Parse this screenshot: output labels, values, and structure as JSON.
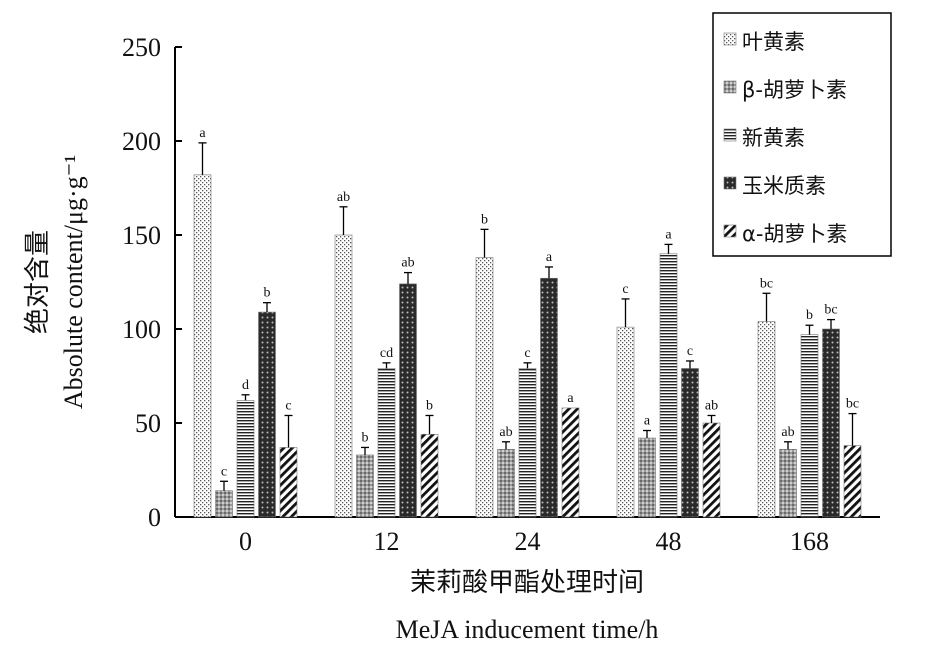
{
  "chart_data": {
    "type": "bar",
    "xlabel_cn": "茉莉酸甲酯处理时间",
    "xlabel_en": "MeJA inducement time/h",
    "ylabel_cn": "绝对含量",
    "ylabel_en": "Absolute content/μg·g⁻¹",
    "ylim": [
      0,
      250
    ],
    "yticks": [
      0,
      50,
      100,
      150,
      200,
      250
    ],
    "categories": [
      "0",
      "12",
      "24",
      "48",
      "168"
    ],
    "series": [
      {
        "name": "叶黄素",
        "pattern": "dots",
        "values": [
          182,
          150,
          138,
          101,
          104
        ],
        "errors": [
          17,
          15,
          15,
          15,
          15
        ],
        "labels": [
          "a",
          "ab",
          "b",
          "c",
          "bc"
        ]
      },
      {
        "name": "β-胡萝卜素",
        "pattern": "grid",
        "values": [
          14,
          33,
          36,
          42,
          36
        ],
        "errors": [
          5,
          4,
          4,
          4,
          4
        ],
        "labels": [
          "c",
          "b",
          "ab",
          "a",
          "ab"
        ]
      },
      {
        "name": "新黄素",
        "pattern": "hlines",
        "values": [
          62,
          79,
          79,
          140,
          97
        ],
        "errors": [
          3,
          3,
          3,
          5,
          5
        ],
        "labels": [
          "d",
          "cd",
          "c",
          "a",
          "b"
        ]
      },
      {
        "name": "玉米质素",
        "pattern": "dark",
        "values": [
          109,
          124,
          127,
          79,
          100
        ],
        "errors": [
          5,
          6,
          6,
          4,
          5
        ],
        "labels": [
          "b",
          "ab",
          "a",
          "c",
          "bc"
        ]
      },
      {
        "name": "α-胡萝卜素",
        "pattern": "diag",
        "values": [
          37,
          44,
          58,
          50,
          38
        ],
        "errors": [
          17,
          10,
          0,
          4,
          17
        ],
        "labels": [
          "c",
          "b",
          "a",
          "ab",
          "bc"
        ]
      }
    ],
    "legend_position": "top-right"
  }
}
